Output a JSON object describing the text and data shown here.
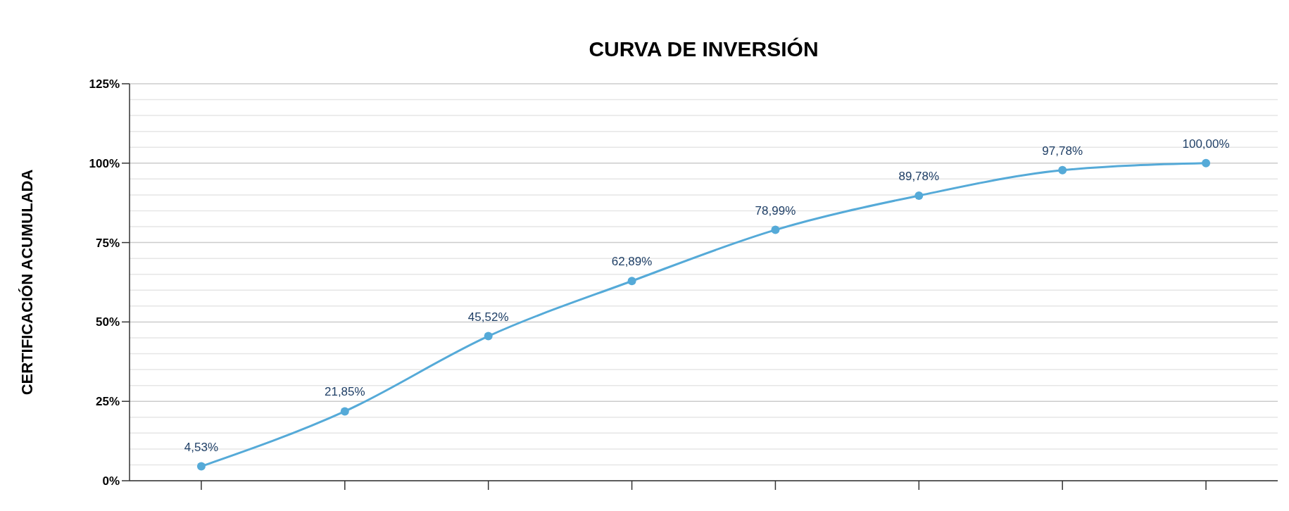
{
  "chart_data": {
    "type": "line",
    "title": "CURVA DE INVERSIÓN",
    "ylabel": "CERTIFICACIÓN ACUMULADA",
    "categories": [
      null,
      null,
      null,
      null,
      null,
      null,
      null,
      null
    ],
    "series": [
      {
        "color": "#55aad8",
        "values": [
          4.53,
          21.85,
          45.52,
          62.89,
          78.99,
          89.78,
          97.78,
          100.0
        ],
        "value_labels": [
          "4,53%",
          "21,85%",
          "45,52%",
          "62,89%",
          "78,99%",
          "89,78%",
          "97,78%",
          "100,00%"
        ]
      }
    ],
    "ylim": [
      0,
      125
    ],
    "yticks": [
      {
        "value": 0,
        "label": "0%"
      },
      {
        "value": 5,
        "label": null
      },
      {
        "value": 10,
        "label": null
      },
      {
        "value": 15,
        "label": null
      },
      {
        "value": 20,
        "label": null
      },
      {
        "value": 25,
        "label": "25%"
      },
      {
        "value": 30,
        "label": null
      },
      {
        "value": 35,
        "label": null
      },
      {
        "value": 40,
        "label": null
      },
      {
        "value": 45,
        "label": null
      },
      {
        "value": 50,
        "label": "50%"
      },
      {
        "value": 55,
        "label": null
      },
      {
        "value": 60,
        "label": null
      },
      {
        "value": 65,
        "label": null
      },
      {
        "value": 70,
        "label": null
      },
      {
        "value": 75,
        "label": "75%"
      },
      {
        "value": 80,
        "label": null
      },
      {
        "value": 85,
        "label": null
      },
      {
        "value": 90,
        "label": null
      },
      {
        "value": 95,
        "label": null
      },
      {
        "value": 100,
        "label": "100%"
      },
      {
        "value": 105,
        "label": null
      },
      {
        "value": 110,
        "label": null
      },
      {
        "value": 115,
        "label": null
      },
      {
        "value": 120,
        "label": null
      },
      {
        "value": 125,
        "label": "125%"
      }
    ],
    "grid": "y",
    "marker": "circle",
    "line_style": "solid",
    "tick_labels": "y"
  }
}
